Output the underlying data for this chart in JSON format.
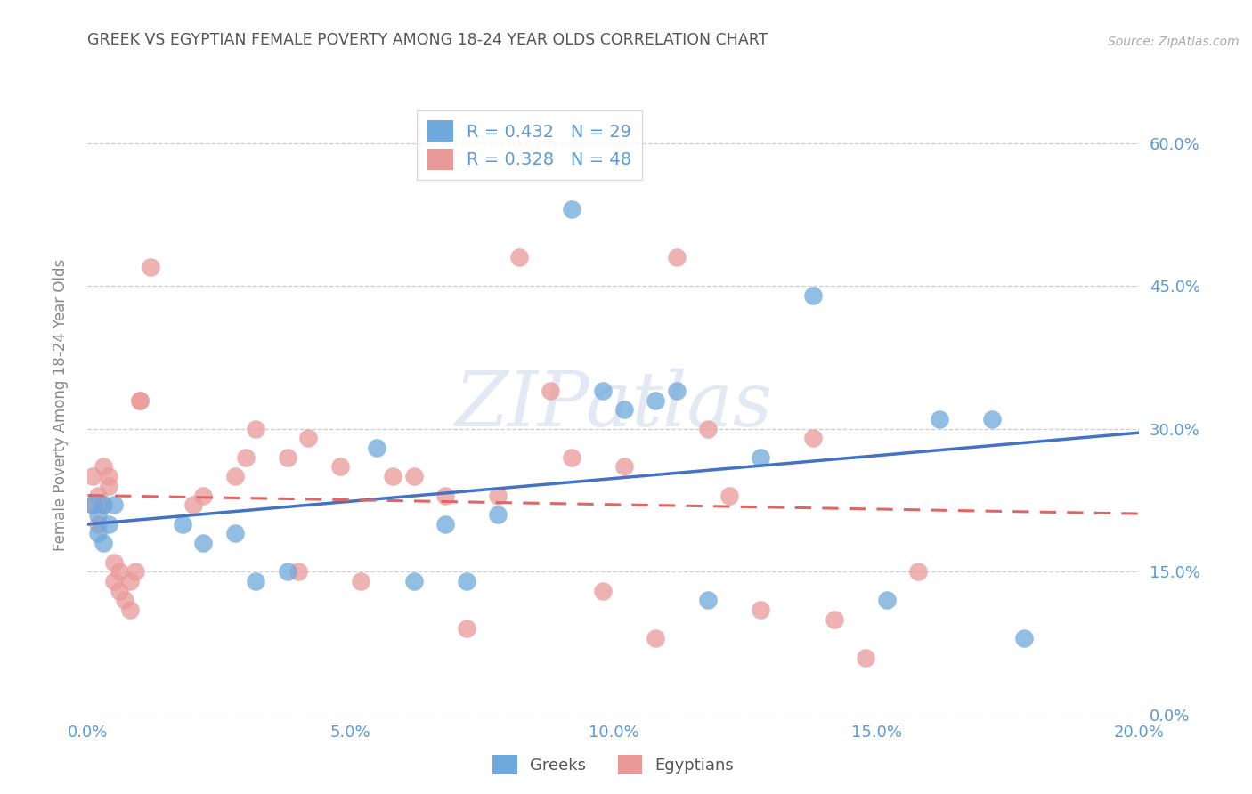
{
  "title": "GREEK VS EGYPTIAN FEMALE POVERTY AMONG 18-24 YEAR OLDS CORRELATION CHART",
  "source": "Source: ZipAtlas.com",
  "ylabel": "Female Poverty Among 18-24 Year Olds",
  "title_color": "#555555",
  "axis_color": "#5b9bd5",
  "background_color": "#ffffff",
  "watermark": "ZIPatlas",
  "xlim": [
    0.0,
    0.2
  ],
  "ylim": [
    0.0,
    0.65
  ],
  "yticks": [
    0.0,
    0.15,
    0.3,
    0.45,
    0.6
  ],
  "xticks": [
    0.0,
    0.05,
    0.1,
    0.15,
    0.2
  ],
  "greek_R": 0.432,
  "greek_N": 29,
  "egyptian_R": 0.328,
  "egyptian_N": 48,
  "greek_color": "#6fa8dc",
  "egyptian_color": "#ea9999",
  "greek_line_color": "#4472c4",
  "egyptian_line_color": "#e06666",
  "greek_x": [
    0.001,
    0.002,
    0.002,
    0.003,
    0.003,
    0.004,
    0.005,
    0.018,
    0.022,
    0.028,
    0.032,
    0.038,
    0.055,
    0.062,
    0.068,
    0.072,
    0.078,
    0.092,
    0.098,
    0.102,
    0.108,
    0.112,
    0.118,
    0.128,
    0.138,
    0.152,
    0.162,
    0.172,
    0.178
  ],
  "greek_y": [
    0.22,
    0.21,
    0.19,
    0.22,
    0.18,
    0.2,
    0.22,
    0.2,
    0.18,
    0.19,
    0.14,
    0.15,
    0.28,
    0.14,
    0.2,
    0.14,
    0.21,
    0.53,
    0.34,
    0.32,
    0.33,
    0.34,
    0.12,
    0.27,
    0.44,
    0.12,
    0.31,
    0.31,
    0.08
  ],
  "egyptian_x": [
    0.001,
    0.001,
    0.002,
    0.002,
    0.003,
    0.003,
    0.004,
    0.004,
    0.005,
    0.005,
    0.006,
    0.006,
    0.007,
    0.008,
    0.008,
    0.009,
    0.01,
    0.01,
    0.012,
    0.02,
    0.022,
    0.028,
    0.03,
    0.032,
    0.038,
    0.04,
    0.042,
    0.048,
    0.052,
    0.058,
    0.062,
    0.068,
    0.072,
    0.078,
    0.082,
    0.088,
    0.092,
    0.098,
    0.102,
    0.108,
    0.112,
    0.118,
    0.122,
    0.128,
    0.138,
    0.142,
    0.148,
    0.158
  ],
  "egyptian_y": [
    0.25,
    0.22,
    0.23,
    0.2,
    0.26,
    0.22,
    0.24,
    0.25,
    0.14,
    0.16,
    0.13,
    0.15,
    0.12,
    0.14,
    0.11,
    0.15,
    0.33,
    0.33,
    0.47,
    0.22,
    0.23,
    0.25,
    0.27,
    0.3,
    0.27,
    0.15,
    0.29,
    0.26,
    0.14,
    0.25,
    0.25,
    0.23,
    0.09,
    0.23,
    0.48,
    0.34,
    0.27,
    0.13,
    0.26,
    0.08,
    0.48,
    0.3,
    0.23,
    0.11,
    0.29,
    0.1,
    0.06,
    0.15
  ]
}
